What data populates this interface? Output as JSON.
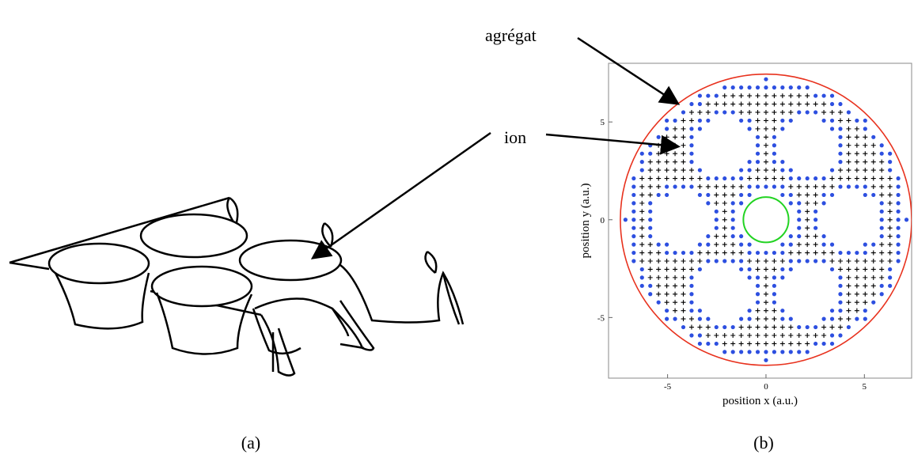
{
  "figure": {
    "annotations": {
      "aggregate": "agrégat",
      "ion": "ion"
    },
    "panel_a": {
      "label": "(a)"
    },
    "panel_b": {
      "label": "(b)",
      "xlabel": "position x (a.u.)",
      "ylabel": "position y (a.u.)",
      "xlim": [
        -8,
        7.4
      ],
      "ylim": [
        -8.1,
        8
      ],
      "xticks": [
        -5,
        0,
        5
      ],
      "yticks": [
        -5,
        0,
        5
      ]
    }
  }
}
